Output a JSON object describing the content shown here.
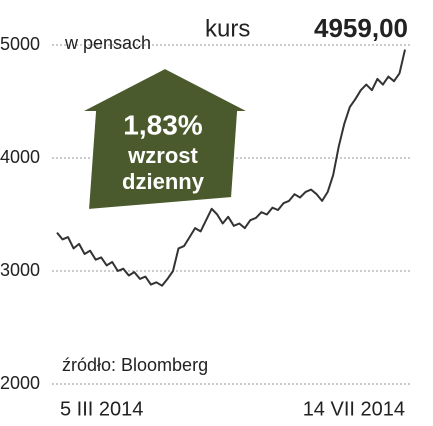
{
  "chart_data": {
    "type": "line",
    "unit_label": "w pensach",
    "price_label": "kurs",
    "price": "4959,00",
    "change": "1,83%",
    "change_line1": "wzrost",
    "change_line2": "dzienny",
    "source": "źródło: Bloomberg",
    "categories": [
      "5 III 2014",
      null,
      null,
      null,
      null,
      null,
      null,
      null,
      null,
      null,
      null,
      null,
      null,
      null,
      null,
      null,
      null,
      null,
      null,
      null,
      null,
      null,
      null,
      null,
      null,
      null,
      null,
      null,
      null,
      null,
      null,
      null,
      null,
      null,
      null,
      null,
      null,
      null,
      null,
      null,
      null,
      null,
      null,
      null,
      null,
      null,
      null,
      null,
      null,
      null,
      null,
      null,
      null,
      null,
      null,
      null,
      null,
      null,
      null,
      null,
      null,
      null,
      null,
      "14 VII 2014"
    ],
    "values": [
      3340,
      3280,
      3300,
      3200,
      3240,
      3150,
      3180,
      3100,
      3120,
      3050,
      3080,
      3000,
      3020,
      2960,
      2990,
      2930,
      2950,
      2880,
      2900,
      2870,
      2930,
      3000,
      3200,
      3220,
      3300,
      3380,
      3350,
      3450,
      3550,
      3500,
      3420,
      3480,
      3400,
      3420,
      3380,
      3450,
      3470,
      3520,
      3500,
      3560,
      3540,
      3600,
      3620,
      3680,
      3650,
      3700,
      3720,
      3680,
      3620,
      3700,
      3850,
      4100,
      4300,
      4450,
      4520,
      4600,
      4650,
      4600,
      4700,
      4650,
      4720,
      4680,
      4750,
      4959
    ],
    "color": "#333333",
    "ylim": [
      2000,
      5000
    ],
    "yticks": [
      2000,
      3000,
      4000,
      5000
    ],
    "grid": true
  }
}
